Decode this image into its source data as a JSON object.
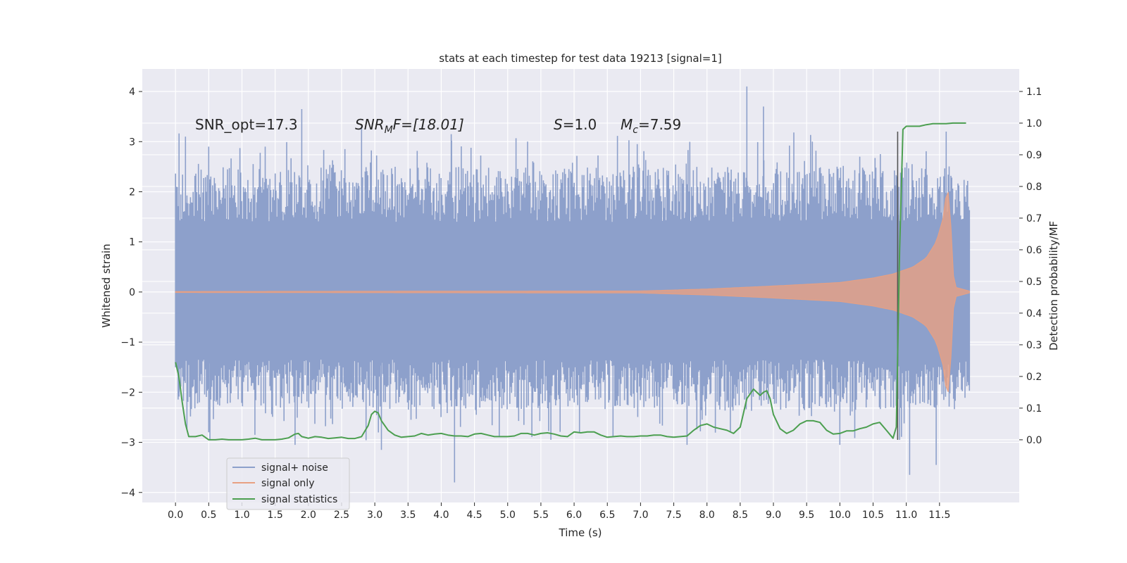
{
  "chart_data": {
    "type": "line",
    "title": "stats at each timestep for test data 19213 [signal=1]",
    "xlabel": "Time (s)",
    "ylabel_left": "Whitened strain",
    "ylabel_right": "Detection probability/MF",
    "xlim": [
      -0.5,
      12.7
    ],
    "ylim_left": [
      -4.2,
      4.45
    ],
    "ylim_right": [
      -0.198,
      1.171
    ],
    "x_ticks": [
      0.0,
      0.5,
      1.0,
      1.5,
      2.0,
      2.5,
      3.0,
      3.5,
      4.0,
      4.5,
      5.0,
      5.5,
      6.0,
      6.5,
      7.0,
      7.5,
      8.0,
      8.5,
      9.0,
      9.5,
      10.0,
      10.5,
      11.0,
      11.5
    ],
    "x_tick_labels": [
      "0.0",
      "0.5",
      "1.0",
      "1.5",
      "2.0",
      "2.5",
      "3.0",
      "3.5",
      "4.0",
      "4.5",
      "5.0",
      "5.5",
      "6.0",
      "6.5",
      "7.0",
      "7.5",
      "8.0",
      "8.5",
      "9.0",
      "9.5",
      "10.0",
      "10.5",
      "11.0",
      "11.5"
    ],
    "y_left_ticks": [
      -4,
      -3,
      -2,
      -1,
      0,
      1,
      2,
      3,
      4
    ],
    "y_left_tick_labels": [
      "−4",
      "−3",
      "−2",
      "−1",
      "0",
      "1",
      "2",
      "3",
      "4"
    ],
    "y_right_ticks": [
      0.0,
      0.1,
      0.2,
      0.3,
      0.4,
      0.5,
      0.6,
      0.7,
      0.8,
      0.9,
      1.0,
      1.1
    ],
    "y_right_tick_labels": [
      "0.0",
      "0.1",
      "0.2",
      "0.3",
      "0.4",
      "0.5",
      "0.6",
      "0.7",
      "0.8",
      "0.9",
      "1.0",
      "1.1"
    ],
    "grid": true,
    "legend_location": "lower-left",
    "annotations": {
      "snr_opt": "SNR_opt=17.3",
      "snr_mf_main": "SNR",
      "snr_mf_sub": "M",
      "snr_mf_rest": "F=[18.01]",
      "s_var": "S",
      "s_rest": "=1.0",
      "mc_var": "M",
      "mc_sub": "c",
      "mc_rest": "=7.59"
    },
    "series": [
      {
        "name": "signal+ noise",
        "axis": "left",
        "color": "#8da0cb",
        "t_range": [
          0.0,
          11.95
        ],
        "core_band": [
          -1.35,
          1.35
        ],
        "typical_envelope": [
          -1.8,
          1.95
        ],
        "notable_peaks": [
          [
            0.0,
            2.25
          ],
          [
            0.15,
            3.1
          ],
          [
            0.5,
            2.9
          ],
          [
            1.35,
            2.9
          ],
          [
            1.9,
            3.65
          ],
          [
            2.55,
            2.85
          ],
          [
            2.8,
            3.3
          ],
          [
            4.15,
            3.15
          ],
          [
            5.3,
            3.0
          ],
          [
            6.95,
            2.95
          ],
          [
            8.6,
            4.1
          ],
          [
            8.85,
            3.7
          ],
          [
            10.3,
            2.7
          ],
          [
            11.6,
            3.2
          ]
        ],
        "notable_troughs": [
          [
            0.5,
            -2.8
          ],
          [
            1.8,
            -3.05
          ],
          [
            3.1,
            -3.15
          ],
          [
            4.2,
            -3.8
          ],
          [
            5.65,
            -2.95
          ],
          [
            7.7,
            -3.05
          ],
          [
            10.0,
            -3.05
          ],
          [
            10.9,
            -2.95
          ],
          [
            11.05,
            -3.65
          ],
          [
            11.45,
            -3.45
          ]
        ]
      },
      {
        "name": "signal only",
        "axis": "left",
        "color": "#e8a082",
        "t_start": 0.0,
        "t_merger": 11.65,
        "t_end": 11.95,
        "amplitude_points": [
          [
            0.0,
            0.01
          ],
          [
            7.0,
            0.02
          ],
          [
            8.0,
            0.06
          ],
          [
            9.0,
            0.12
          ],
          [
            10.0,
            0.19
          ],
          [
            10.5,
            0.28
          ],
          [
            10.8,
            0.36
          ],
          [
            11.1,
            0.5
          ],
          [
            11.3,
            0.68
          ],
          [
            11.45,
            1.0
          ],
          [
            11.55,
            1.45
          ],
          [
            11.62,
            2.15
          ],
          [
            11.66,
            1.6
          ],
          [
            11.72,
            0.1
          ],
          [
            11.95,
            0.02
          ]
        ]
      },
      {
        "name": "signal statistics",
        "axis": "right",
        "color": "#4c9f50",
        "points": [
          [
            0.0,
            0.245
          ],
          [
            0.05,
            0.2
          ],
          [
            0.1,
            0.12
          ],
          [
            0.15,
            0.05
          ],
          [
            0.2,
            0.01
          ],
          [
            0.3,
            0.01
          ],
          [
            0.4,
            0.015
          ],
          [
            0.5,
            0.0
          ],
          [
            0.6,
            0.0
          ],
          [
            0.7,
            0.002
          ],
          [
            0.8,
            0.0
          ],
          [
            0.9,
            0.0
          ],
          [
            1.0,
            0.0
          ],
          [
            1.1,
            0.002
          ],
          [
            1.2,
            0.005
          ],
          [
            1.3,
            0.0
          ],
          [
            1.4,
            0.0
          ],
          [
            1.5,
            0.0
          ],
          [
            1.6,
            0.002
          ],
          [
            1.7,
            0.006
          ],
          [
            1.8,
            0.018
          ],
          [
            1.85,
            0.02
          ],
          [
            1.9,
            0.01
          ],
          [
            2.0,
            0.005
          ],
          [
            2.1,
            0.01
          ],
          [
            2.2,
            0.008
          ],
          [
            2.3,
            0.004
          ],
          [
            2.4,
            0.006
          ],
          [
            2.5,
            0.008
          ],
          [
            2.6,
            0.004
          ],
          [
            2.7,
            0.004
          ],
          [
            2.8,
            0.01
          ],
          [
            2.9,
            0.045
          ],
          [
            2.95,
            0.08
          ],
          [
            3.0,
            0.09
          ],
          [
            3.05,
            0.085
          ],
          [
            3.1,
            0.06
          ],
          [
            3.2,
            0.03
          ],
          [
            3.3,
            0.015
          ],
          [
            3.4,
            0.008
          ],
          [
            3.5,
            0.01
          ],
          [
            3.6,
            0.012
          ],
          [
            3.7,
            0.02
          ],
          [
            3.8,
            0.015
          ],
          [
            3.9,
            0.018
          ],
          [
            4.0,
            0.02
          ],
          [
            4.1,
            0.015
          ],
          [
            4.2,
            0.012
          ],
          [
            4.3,
            0.012
          ],
          [
            4.4,
            0.01
          ],
          [
            4.5,
            0.018
          ],
          [
            4.6,
            0.02
          ],
          [
            4.7,
            0.015
          ],
          [
            4.8,
            0.01
          ],
          [
            4.9,
            0.01
          ],
          [
            5.0,
            0.01
          ],
          [
            5.1,
            0.012
          ],
          [
            5.2,
            0.02
          ],
          [
            5.3,
            0.02
          ],
          [
            5.4,
            0.015
          ],
          [
            5.5,
            0.02
          ],
          [
            5.6,
            0.022
          ],
          [
            5.7,
            0.018
          ],
          [
            5.8,
            0.012
          ],
          [
            5.9,
            0.01
          ],
          [
            6.0,
            0.025
          ],
          [
            6.1,
            0.022
          ],
          [
            6.2,
            0.025
          ],
          [
            6.3,
            0.025
          ],
          [
            6.4,
            0.015
          ],
          [
            6.5,
            0.008
          ],
          [
            6.6,
            0.01
          ],
          [
            6.7,
            0.012
          ],
          [
            6.8,
            0.01
          ],
          [
            6.9,
            0.01
          ],
          [
            7.0,
            0.012
          ],
          [
            7.1,
            0.012
          ],
          [
            7.2,
            0.015
          ],
          [
            7.3,
            0.015
          ],
          [
            7.4,
            0.01
          ],
          [
            7.5,
            0.008
          ],
          [
            7.6,
            0.01
          ],
          [
            7.7,
            0.012
          ],
          [
            7.8,
            0.03
          ],
          [
            7.9,
            0.045
          ],
          [
            8.0,
            0.05
          ],
          [
            8.1,
            0.04
          ],
          [
            8.2,
            0.035
          ],
          [
            8.3,
            0.03
          ],
          [
            8.4,
            0.02
          ],
          [
            8.5,
            0.04
          ],
          [
            8.6,
            0.13
          ],
          [
            8.7,
            0.16
          ],
          [
            8.8,
            0.14
          ],
          [
            8.85,
            0.15
          ],
          [
            8.9,
            0.155
          ],
          [
            8.95,
            0.13
          ],
          [
            9.0,
            0.08
          ],
          [
            9.1,
            0.035
          ],
          [
            9.2,
            0.02
          ],
          [
            9.3,
            0.03
          ],
          [
            9.4,
            0.05
          ],
          [
            9.5,
            0.06
          ],
          [
            9.6,
            0.06
          ],
          [
            9.7,
            0.055
          ],
          [
            9.8,
            0.03
          ],
          [
            9.9,
            0.018
          ],
          [
            10.0,
            0.02
          ],
          [
            10.1,
            0.028
          ],
          [
            10.2,
            0.028
          ],
          [
            10.3,
            0.035
          ],
          [
            10.4,
            0.04
          ],
          [
            10.5,
            0.05
          ],
          [
            10.6,
            0.055
          ],
          [
            10.7,
            0.03
          ],
          [
            10.8,
            0.005
          ],
          [
            10.85,
            0.04
          ],
          [
            10.9,
            0.6
          ],
          [
            10.95,
            0.98
          ],
          [
            11.0,
            0.99
          ],
          [
            11.1,
            0.99
          ],
          [
            11.2,
            0.99
          ],
          [
            11.3,
            0.995
          ],
          [
            11.4,
            0.998
          ],
          [
            11.5,
            0.998
          ],
          [
            11.6,
            0.998
          ],
          [
            11.7,
            1.0
          ],
          [
            11.8,
            1.0
          ],
          [
            11.9,
            1.0
          ]
        ]
      }
    ],
    "marker_line": {
      "x": 10.87,
      "y_from": -2.95,
      "y_to": 3.2,
      "color": "#555555"
    }
  }
}
